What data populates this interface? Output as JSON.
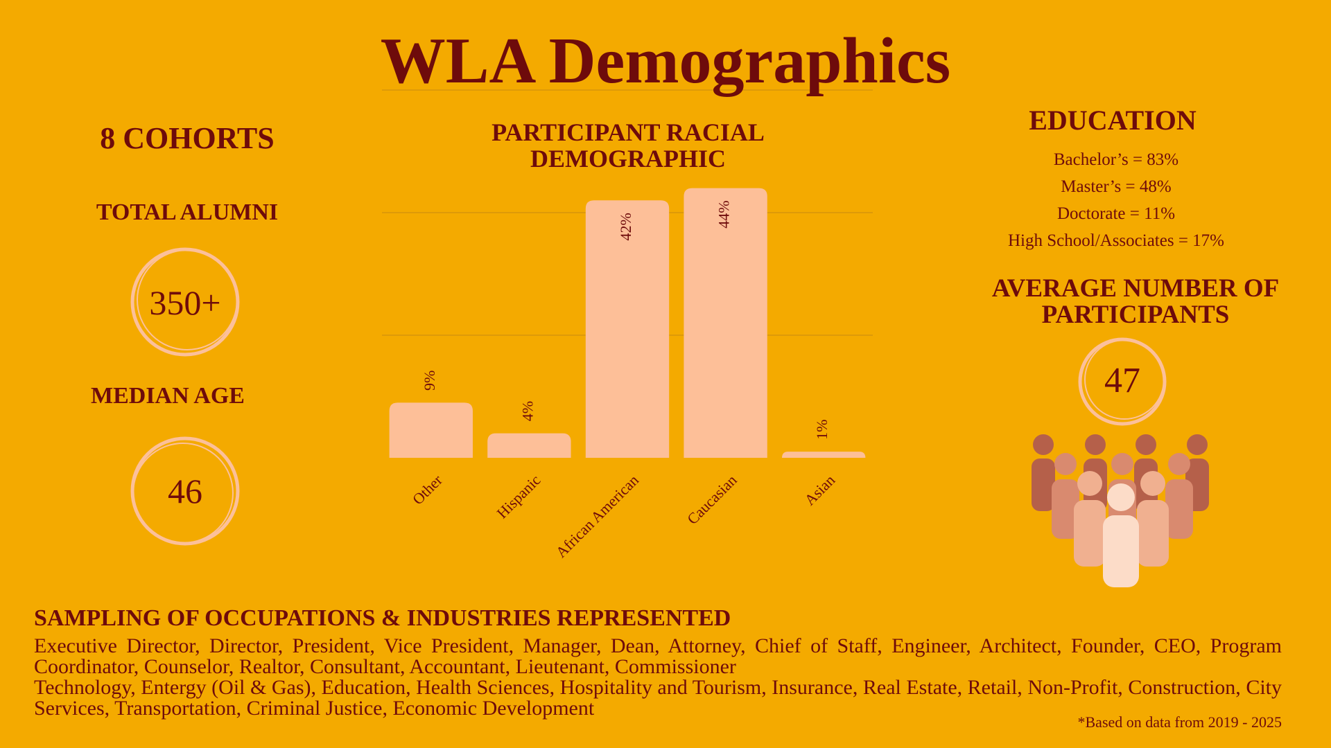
{
  "title": "WLA Demographics",
  "stats": {
    "cohorts": "8 COHORTS",
    "alumni_label": "TOTAL ALUMNI",
    "alumni_value": "350+",
    "age_label": "MEDIAN AGE",
    "age_value": 46
  },
  "chart_data": {
    "type": "bar",
    "title": "PARTICIPANT RACIAL DEMOGRAPHIC",
    "categories": [
      "Other",
      "Hispanic",
      "African American",
      "Caucasian",
      "Asian"
    ],
    "values": [
      9,
      4,
      42,
      44,
      1
    ],
    "value_labels": [
      "9%",
      "4%",
      "42%",
      "44%",
      "1%"
    ],
    "color": "#fdbf98",
    "ylim": [
      0,
      60
    ],
    "yticks": [
      20,
      40,
      60
    ],
    "grid": true
  },
  "education": {
    "heading": "EDUCATION",
    "items": [
      "Bachelor’s = 83%",
      "Master’s = 48%",
      "Doctorate = 11%",
      "High School/Associates = 17%"
    ]
  },
  "participants": {
    "heading": "AVERAGE NUMBER OF PARTICIPANTS",
    "value": 47
  },
  "occupations": {
    "heading": "SAMPLING OF OCCUPATIONS & INDUSTRIES REPRESENTED",
    "paragraphs": [
      "Executive Director, Director, President, Vice President, Manager, Dean, Attorney, Chief of Staff, Engineer, Architect, Founder, CEO, Program Coordinator, Counselor, Realtor, Consultant, Accountant, Lieutenant, Commissioner",
      "Technology, Entergy (Oil & Gas), Education, Health Sciences, Hospitality and Tourism, Insurance, Real Estate, Retail, Non-Profit, Construction, City Services, Transportation, Criminal Justice, Economic Development"
    ]
  },
  "footnote": "*Based on data from 2019 - 2025"
}
